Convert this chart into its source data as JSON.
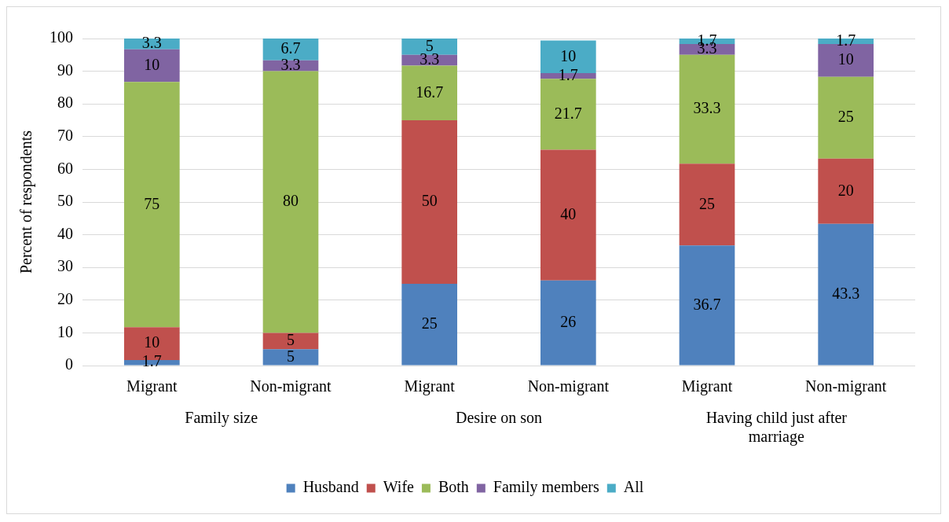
{
  "chart_data": {
    "type": "bar",
    "stacked": true,
    "ylabel": "Percent of respondents",
    "categories": [
      "Migrant",
      "Non-migrant",
      "Migrant",
      "Non-migrant",
      "Migrant",
      "Non-migrant"
    ],
    "annotations": [
      "Family size",
      "Desire on son",
      "Having child just after marriage"
    ],
    "series": [
      {
        "name": "Husband",
        "color": "#4f81bd",
        "values": [
          1.7,
          5,
          25,
          26,
          36.7,
          43.3
        ]
      },
      {
        "name": "Wife",
        "color": "#c0504d",
        "values": [
          10,
          5,
          50,
          40,
          25,
          20
        ]
      },
      {
        "name": "Both",
        "color": "#9bbb59",
        "values": [
          75,
          80,
          16.7,
          21.7,
          33.3,
          25
        ]
      },
      {
        "name": "Family members",
        "color": "#8064a2",
        "values": [
          10,
          3.3,
          3.3,
          1.7,
          3.3,
          10
        ]
      },
      {
        "name": "All",
        "color": "#4bacc6",
        "values": [
          3.3,
          6.7,
          5,
          10,
          1.7,
          1.7
        ]
      }
    ],
    "ylim": [
      0,
      100
    ],
    "yticks": [
      0,
      10,
      20,
      30,
      40,
      50,
      60,
      70,
      80,
      90,
      100
    ],
    "grid": "y",
    "legend": "bottom",
    "data_labels": true
  }
}
